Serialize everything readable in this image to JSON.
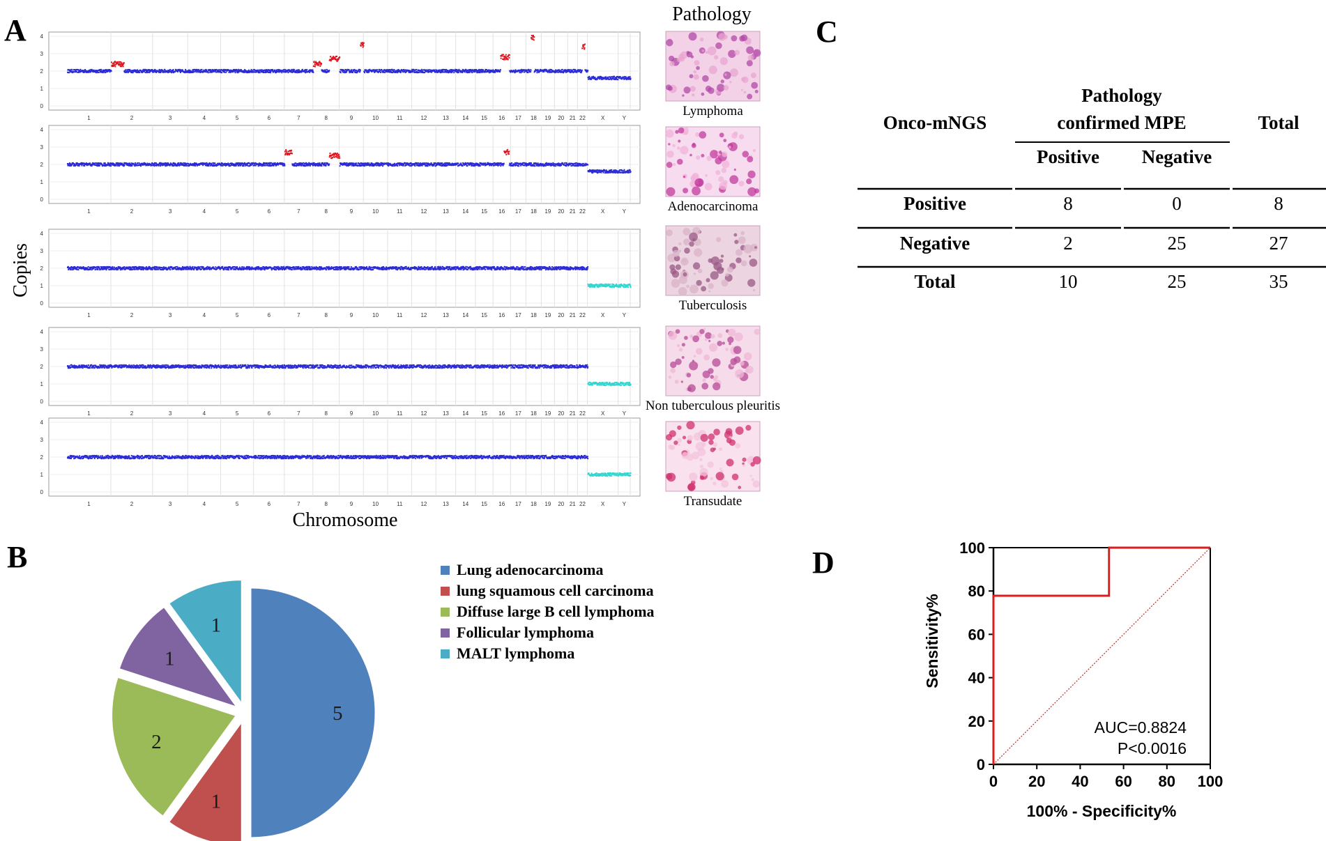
{
  "panel_labels": {
    "a": "A",
    "b": "B",
    "c": "C",
    "d": "D"
  },
  "panel_a": {
    "ylabel": "Copies",
    "xlabel": "Chromosome",
    "pathology_header": "Pathology",
    "tracks": [
      {
        "pathology": "Lymphoma",
        "histology_palette": [
          "#e8a6d0",
          "#b14aa8",
          "#f3d2e8"
        ]
      },
      {
        "pathology": "Adenocarcinoma",
        "histology_palette": [
          "#f1b3da",
          "#c33b9e",
          "#f7dcef"
        ]
      },
      {
        "pathology": "Tuberculosis",
        "histology_palette": [
          "#d9b4c8",
          "#9a5a86",
          "#ecd4e0"
        ]
      },
      {
        "pathology": "Non tuberculous pleuritis",
        "histology_palette": [
          "#efb8d6",
          "#b64b97",
          "#f6dceb"
        ]
      },
      {
        "pathology": "Transudate",
        "histology_palette": [
          "#f3c3dc",
          "#d0306f",
          "#f9e2ee"
        ]
      }
    ],
    "y_ticks": [
      "0",
      "1",
      "2",
      "3",
      "4"
    ],
    "chromosomes": [
      "1",
      "2",
      "3",
      "4",
      "5",
      "6",
      "7",
      "8",
      "9",
      "10",
      "11",
      "12",
      "13",
      "14",
      "15",
      "16",
      "17",
      "18",
      "19",
      "20",
      "21",
      "22",
      "X",
      "Y"
    ],
    "colors": {
      "normal": "#2b2bd6",
      "gain": "#e0141e",
      "sex": "#33d6d0"
    }
  },
  "panel_b": {
    "legend": [
      "Lung adenocarcinoma",
      "lung squamous cell carcinoma",
      "Diffuse large B cell lymphoma",
      "Follicular lymphoma",
      "MALT lymphoma"
    ],
    "colors": [
      "#4f81bd",
      "#c0504d",
      "#9bbb59",
      "#8064a2",
      "#4bacc6"
    ]
  },
  "panel_c": {
    "row_header": "Onco-mNGS",
    "group_header_line1": "Pathology",
    "group_header_line2": "confirmed MPE",
    "sub_headers": [
      "Positive",
      "Negative"
    ],
    "total_header": "Total",
    "rows": [
      {
        "label": "Positive",
        "cells": [
          "8",
          "0",
          "8"
        ]
      },
      {
        "label": "Negative",
        "cells": [
          "2",
          "25",
          "27"
        ]
      },
      {
        "label": "Total",
        "cells": [
          "10",
          "25",
          "35"
        ]
      }
    ]
  },
  "chart_data": [
    {
      "type": "pie",
      "title": "",
      "categories": [
        "Lung adenocarcinoma",
        "lung squamous cell carcinoma",
        "Diffuse large B cell lymphoma",
        "Follicular lymphoma",
        "MALT lymphoma"
      ],
      "values": [
        5,
        1,
        2,
        1,
        1
      ],
      "labels": [
        "5",
        "1",
        "2",
        "1",
        "1"
      ]
    },
    {
      "type": "line",
      "title": "",
      "xlabel": "100% - Specificity%",
      "ylabel": "Sensitivity%",
      "xlim": [
        0,
        100
      ],
      "ylim": [
        0,
        100
      ],
      "x_ticks": [
        "0",
        "20",
        "40",
        "60",
        "80",
        "100"
      ],
      "y_ticks": [
        "0",
        "20",
        "40",
        "60",
        "80",
        "100"
      ],
      "series": [
        {
          "name": "ROC",
          "color": "#d91e1e",
          "x": [
            0,
            0,
            53.3,
            53.3,
            100
          ],
          "y": [
            0,
            77.8,
            77.8,
            100,
            100
          ]
        },
        {
          "name": "reference",
          "color": "#d91e1e",
          "x": [
            0,
            100
          ],
          "y": [
            0,
            100
          ]
        }
      ],
      "annotations": [
        "AUC=0.8824",
        "P<0.0016"
      ]
    }
  ]
}
